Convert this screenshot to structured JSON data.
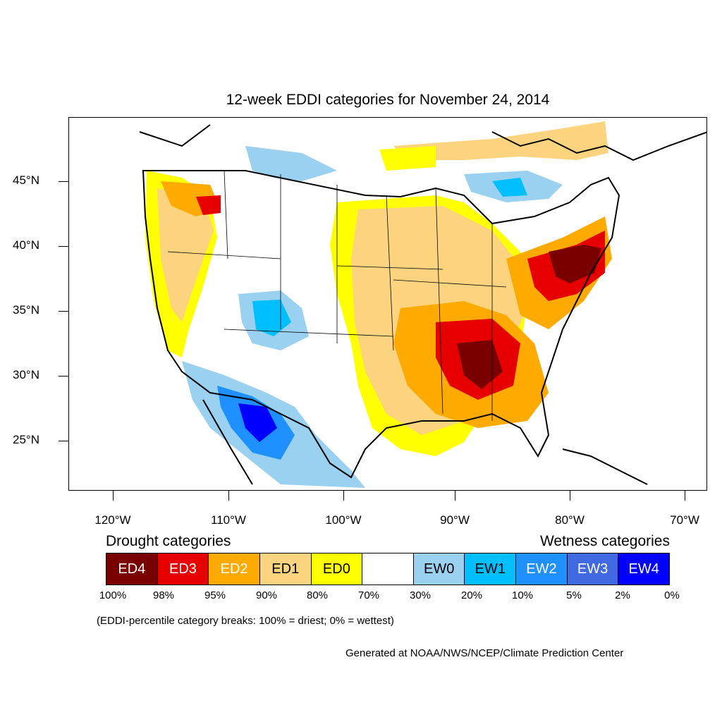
{
  "title": "12-week EDDI categories for November 24, 2014",
  "latitude_labels": [
    "45°N",
    "40°N",
    "35°N",
    "30°N",
    "25°N"
  ],
  "longitude_labels": [
    "120°W",
    "110°W",
    "100°W",
    "90°W",
    "80°W",
    "70°W"
  ],
  "drought_heading": "Drought categories",
  "wetness_heading": "Wetness categories",
  "legend": [
    {
      "label": "ED4",
      "color": "#7a0000",
      "text_color": "#ffffff"
    },
    {
      "label": "ED3",
      "color": "#e60000",
      "text_color": "#ffffff"
    },
    {
      "label": "ED2",
      "color": "#ffaa00",
      "text_color": "#ffffff"
    },
    {
      "label": "ED1",
      "color": "#fcd37f",
      "text_color": "#000000"
    },
    {
      "label": "ED0",
      "color": "#ffff00",
      "text_color": "#000000"
    },
    {
      "label": "",
      "color": "#ffffff",
      "text_color": "#000000"
    },
    {
      "label": "EW0",
      "color": "#9ad0f0",
      "text_color": "#000000"
    },
    {
      "label": "EW1",
      "color": "#00bfff",
      "text_color": "#000000"
    },
    {
      "label": "EW2",
      "color": "#1e90ff",
      "text_color": "#ffffff"
    },
    {
      "label": "EW3",
      "color": "#4169e1",
      "text_color": "#ffffff"
    },
    {
      "label": "EW4",
      "color": "#0000ff",
      "text_color": "#ffffff"
    }
  ],
  "percent_breaks": [
    "100%",
    "98%",
    "95%",
    "90%",
    "80%",
    "70%",
    "30%",
    "20%",
    "10%",
    "5%",
    "2%",
    "0%"
  ],
  "note": "(EDDI-percentile category breaks: 100% = driest; 0% = wettest)",
  "credit": "Generated at NOAA/NWS/NCEP/Climate Prediction Center"
}
